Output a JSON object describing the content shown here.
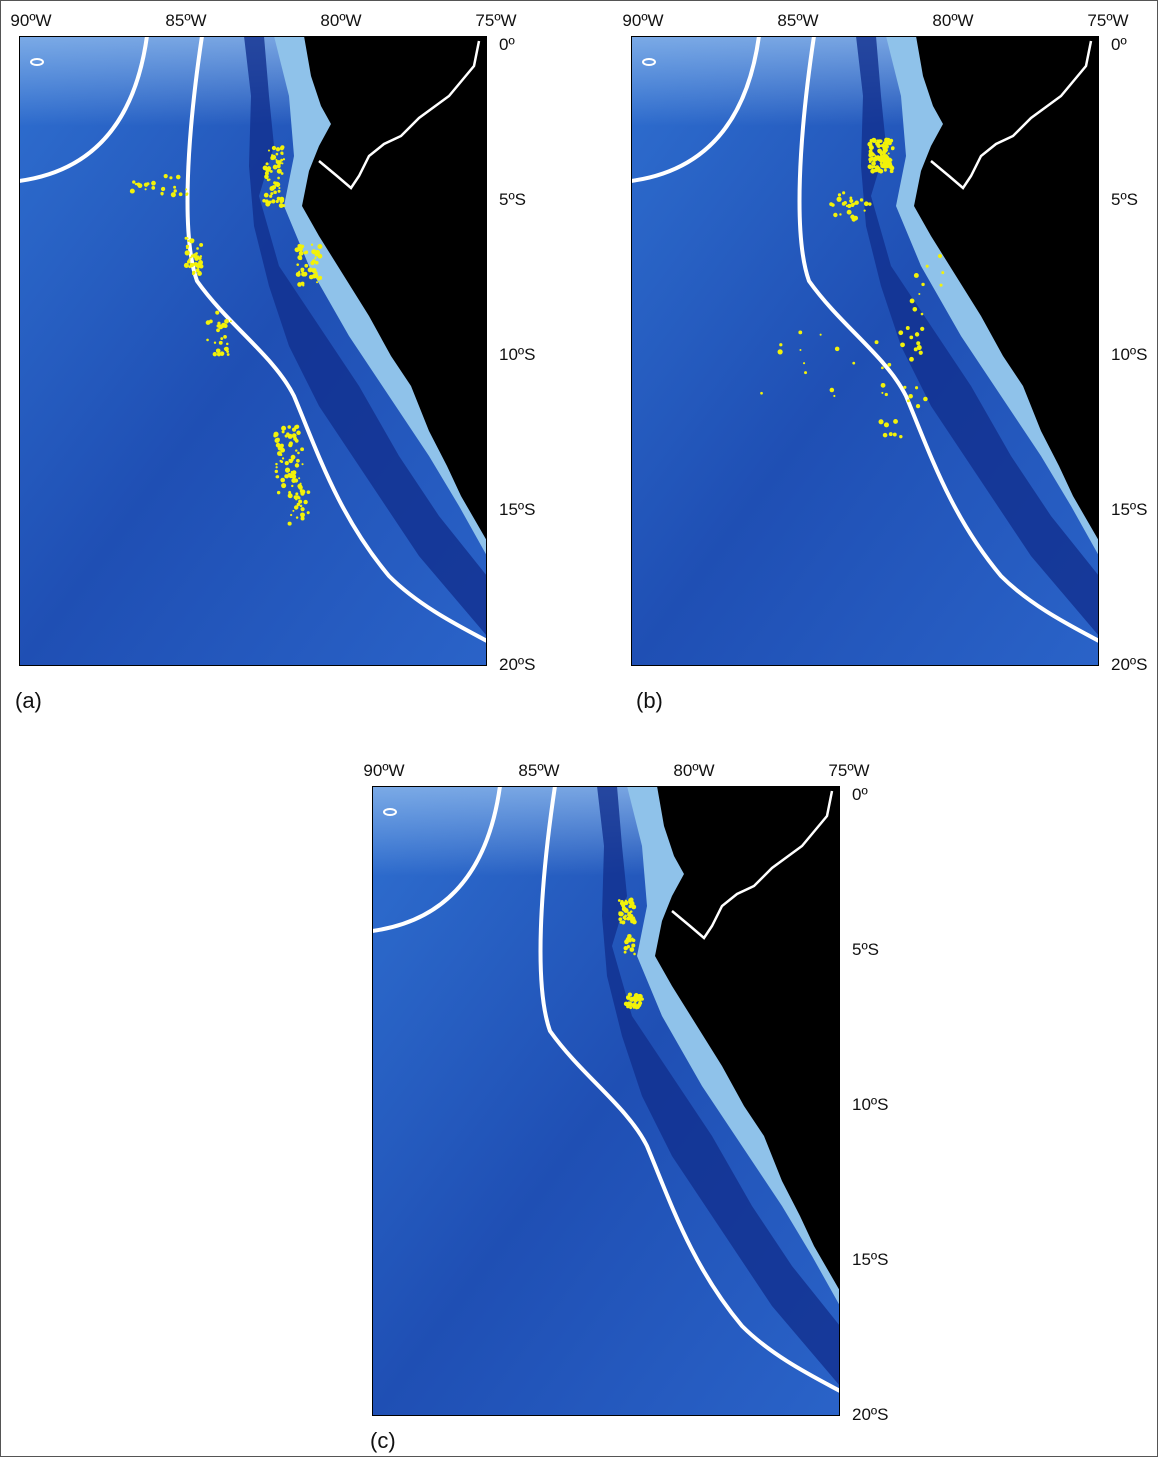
{
  "panels": [
    {
      "label": "(a)",
      "lon_labels": [
        "90ºW",
        "85ºW",
        "80ºW",
        "75ºW"
      ],
      "lat_labels": [
        "0º",
        "5ºS",
        "10ºS",
        "15ºS",
        "20ºS"
      ]
    },
    {
      "label": "(b)",
      "lon_labels": [
        "90ºW",
        "85ºW",
        "80ºW",
        "75ºW"
      ],
      "lat_labels": [
        "0º",
        "5ºS",
        "10ºS",
        "15ºS",
        "20ºS"
      ]
    },
    {
      "label": "(c)",
      "lon_labels": [
        "90ºW",
        "85ºW",
        "80ºW",
        "75ºW"
      ],
      "lat_labels": [
        "0º",
        "5ºS",
        "10ºS",
        "15ºS",
        "20ºS"
      ]
    }
  ]
}
